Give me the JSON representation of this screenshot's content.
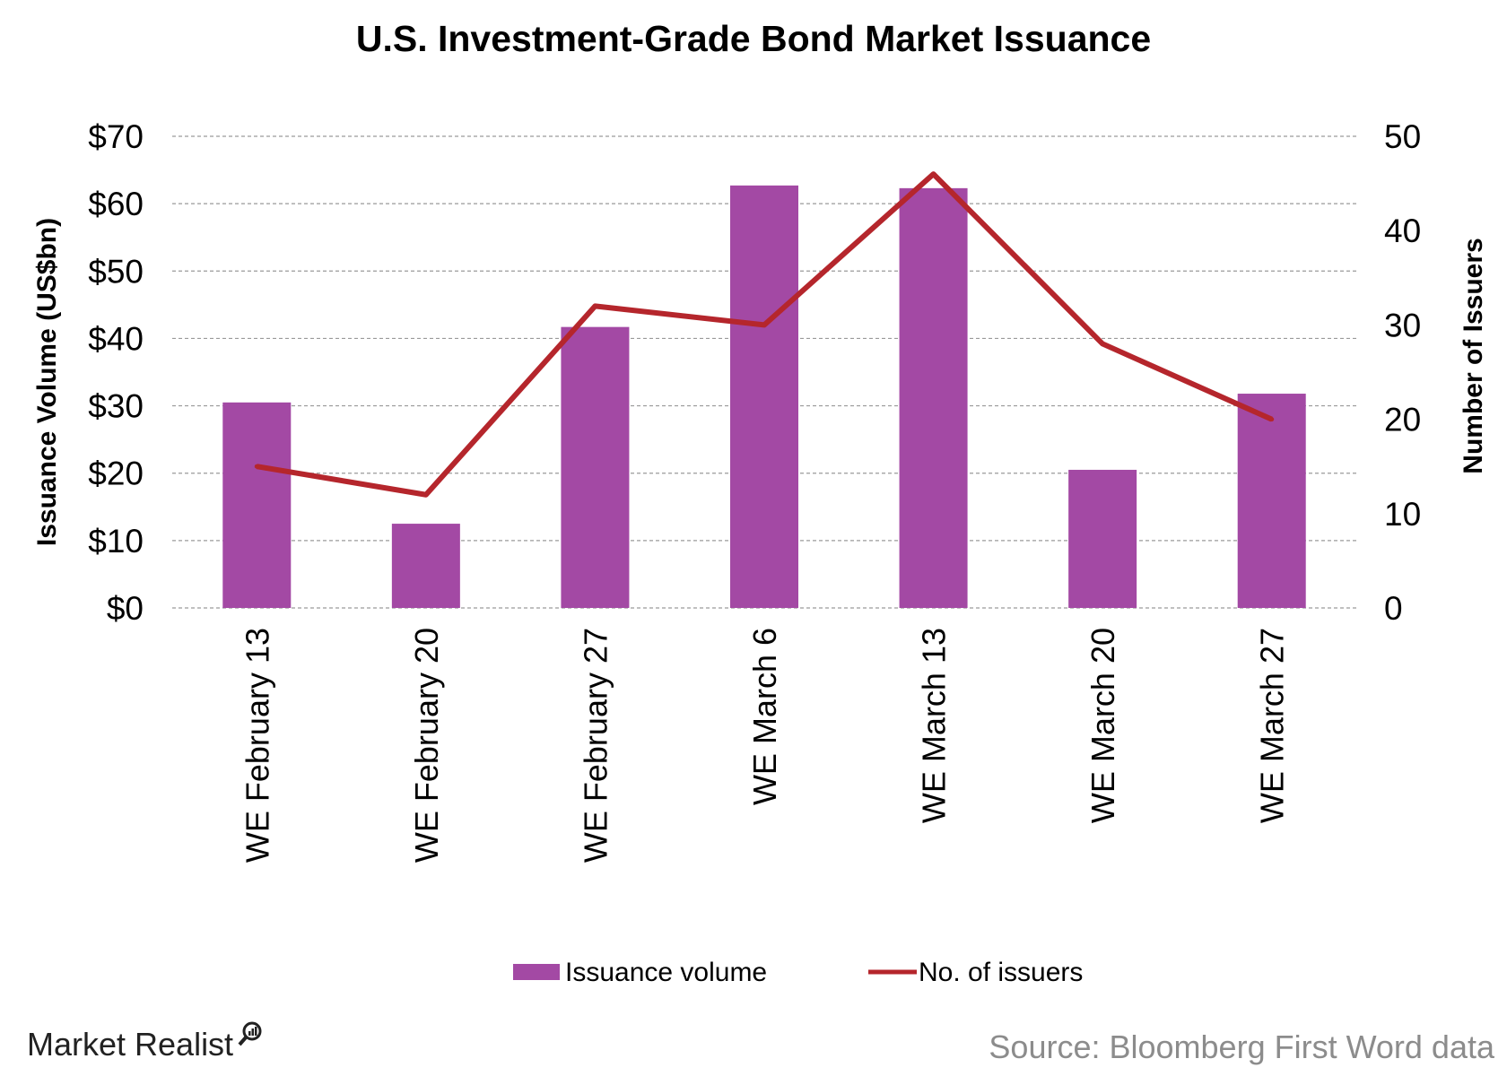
{
  "chart_data": {
    "type": "bar",
    "title": "U.S. Investment-Grade Bond Market Issuance",
    "categories": [
      "WE February 13",
      "WE February 20",
      "WE February 27",
      "WE March 6",
      "WE March 13",
      "WE March 20",
      "WE March 27"
    ],
    "series": [
      {
        "name": "Issuance volume",
        "type": "bar",
        "axis": "left",
        "color": "#a349a4",
        "values": [
          30.5,
          12.5,
          41.7,
          62.7,
          62.3,
          20.5,
          31.8
        ]
      },
      {
        "name": "No. of issuers",
        "type": "line",
        "axis": "right",
        "color": "#b5262c",
        "values": [
          15,
          12,
          32,
          30,
          46,
          28,
          20
        ]
      }
    ],
    "ylabel": "Issuance Volume (US$bn)",
    "ylabel_right": "Number of Issuers",
    "ylim": [
      0,
      70
    ],
    "ylim_right": [
      0,
      50
    ],
    "yticks": [
      "$0",
      "$10",
      "$20",
      "$30",
      "$40",
      "$50",
      "$60",
      "$70"
    ],
    "yticks_right": [
      "0",
      "10",
      "20",
      "30",
      "40",
      "50"
    ],
    "grid": "horizontal dashed",
    "legend_position": "bottom"
  },
  "footer": {
    "brand": "Market Realist",
    "brand_icon": "magnifier-chart-icon",
    "source": "Source: Bloomberg First Word data"
  }
}
